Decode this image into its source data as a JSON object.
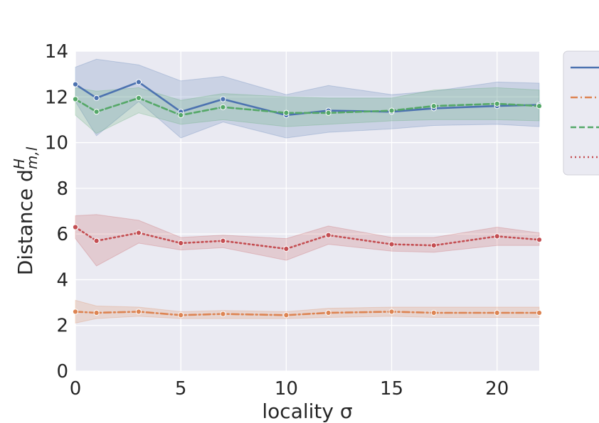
{
  "chart_data": {
    "type": "line",
    "title": "",
    "xlabel": "locality σ",
    "ylabel_text": "Distance d",
    "ylabel_sup": "H",
    "ylabel_sub": "m,l",
    "xlim": [
      0,
      22
    ],
    "ylim": [
      0,
      14
    ],
    "xticks": [
      0,
      5,
      10,
      15,
      20
    ],
    "yticks": [
      0,
      2,
      4,
      6,
      8,
      10,
      12,
      14
    ],
    "grid": true,
    "legend_placement": "right, partially cut off",
    "x": [
      0,
      1,
      3,
      5,
      7,
      10,
      12,
      15,
      17,
      20,
      22
    ],
    "series": [
      {
        "color": "#4c72b0",
        "dash": "solid",
        "values": [
          12.55,
          11.95,
          12.65,
          11.35,
          11.9,
          11.2,
          11.4,
          11.35,
          11.5,
          11.6,
          11.65
        ],
        "lower": [
          11.8,
          10.3,
          11.8,
          10.2,
          10.9,
          10.2,
          10.45,
          10.6,
          10.75,
          10.8,
          10.7
        ],
        "upper": [
          13.3,
          13.65,
          13.4,
          12.7,
          12.9,
          12.1,
          12.5,
          12.1,
          12.25,
          12.65,
          12.6
        ]
      },
      {
        "color": "#dd8452",
        "dash": "dashdot",
        "values": [
          2.6,
          2.55,
          2.6,
          2.45,
          2.5,
          2.45,
          2.55,
          2.6,
          2.55,
          2.55,
          2.55
        ],
        "lower": [
          2.1,
          2.3,
          2.4,
          2.3,
          2.3,
          2.3,
          2.35,
          2.4,
          2.35,
          2.35,
          2.35
        ],
        "upper": [
          3.1,
          2.85,
          2.8,
          2.6,
          2.65,
          2.6,
          2.75,
          2.8,
          2.8,
          2.8,
          2.8
        ]
      },
      {
        "color": "#55a868",
        "dash": "dashed",
        "values": [
          11.9,
          11.35,
          11.95,
          11.2,
          11.55,
          11.3,
          11.3,
          11.4,
          11.6,
          11.7,
          11.6
        ],
        "lower": [
          11.2,
          10.4,
          11.3,
          10.8,
          11.0,
          10.7,
          10.8,
          10.95,
          11.0,
          11.0,
          10.95
        ],
        "upper": [
          12.4,
          12.25,
          12.4,
          11.85,
          12.15,
          12.0,
          11.95,
          11.95,
          12.3,
          12.4,
          12.3
        ]
      },
      {
        "color": "#c44e52",
        "dash": "dotted",
        "values": [
          6.3,
          5.7,
          6.05,
          5.6,
          5.7,
          5.35,
          5.95,
          5.55,
          5.5,
          5.9,
          5.75
        ],
        "lower": [
          5.8,
          4.6,
          5.6,
          5.3,
          5.4,
          4.85,
          5.55,
          5.25,
          5.2,
          5.5,
          5.5
        ],
        "upper": [
          6.8,
          6.85,
          6.6,
          5.85,
          5.95,
          5.8,
          6.35,
          5.85,
          5.85,
          6.3,
          6.05
        ]
      }
    ]
  }
}
